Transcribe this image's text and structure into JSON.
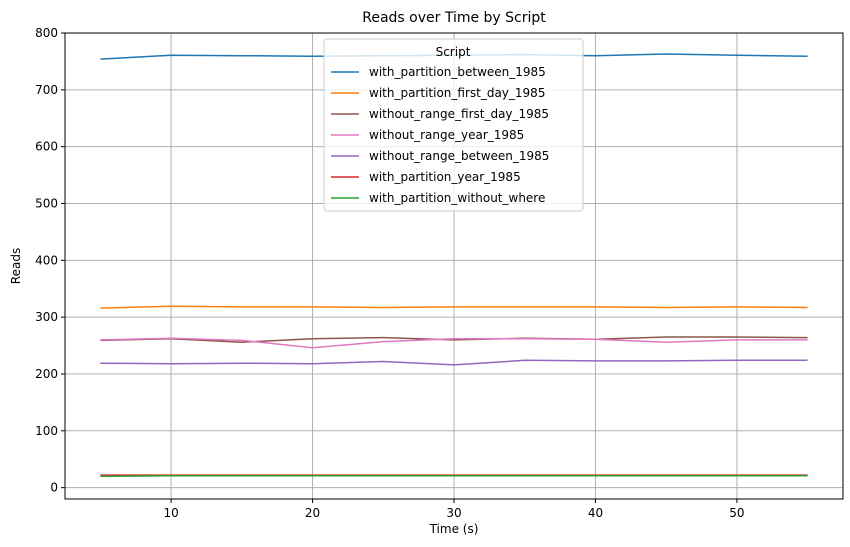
{
  "chart_data": {
    "type": "line",
    "title": "Reads over Time by Script",
    "xlabel": "Time (s)",
    "ylabel": "Reads",
    "xlim": [
      2.5,
      57.5
    ],
    "ylim": [
      -20,
      800
    ],
    "xticks": [
      10,
      20,
      30,
      40,
      50
    ],
    "yticks": [
      0,
      100,
      200,
      300,
      400,
      500,
      600,
      700,
      800
    ],
    "grid": true,
    "legend": {
      "title": "Script",
      "position": "top-center"
    },
    "x": [
      5,
      10,
      15,
      20,
      25,
      30,
      35,
      40,
      45,
      50,
      55
    ],
    "series": [
      {
        "name": "with_partition_between_1985",
        "color": "#1f77b4",
        "values": [
          754,
          761,
          760,
          759,
          760,
          761,
          762,
          760,
          763,
          761,
          759
        ]
      },
      {
        "name": "with_partition_first_day_1985",
        "color": "#ff7f0e",
        "values": [
          316,
          319,
          318,
          318,
          317,
          318,
          318,
          318,
          317,
          318,
          317
        ]
      },
      {
        "name": "without_range_first_day_1985",
        "color": "#8c564b",
        "values": [
          259,
          262,
          256,
          262,
          264,
          260,
          263,
          261,
          265,
          265,
          264
        ]
      },
      {
        "name": "without_range_year_1985",
        "color": "#e377c2",
        "values": [
          260,
          263,
          259,
          246,
          257,
          262,
          262,
          261,
          256,
          260,
          260
        ]
      },
      {
        "name": "without_range_between_1985",
        "color": "#9467bd",
        "values": [
          219,
          218,
          219,
          218,
          222,
          216,
          224,
          223,
          223,
          224,
          224
        ]
      },
      {
        "name": "with_partition_year_1985",
        "color": "#d62728",
        "values": [
          22,
          22,
          22,
          22,
          22,
          22,
          22,
          22,
          22,
          22,
          22
        ]
      },
      {
        "name": "with_partition_without_where",
        "color": "#2ca02c",
        "values": [
          20,
          21,
          21,
          21,
          21,
          21,
          21,
          21,
          21,
          21,
          21
        ]
      }
    ]
  }
}
